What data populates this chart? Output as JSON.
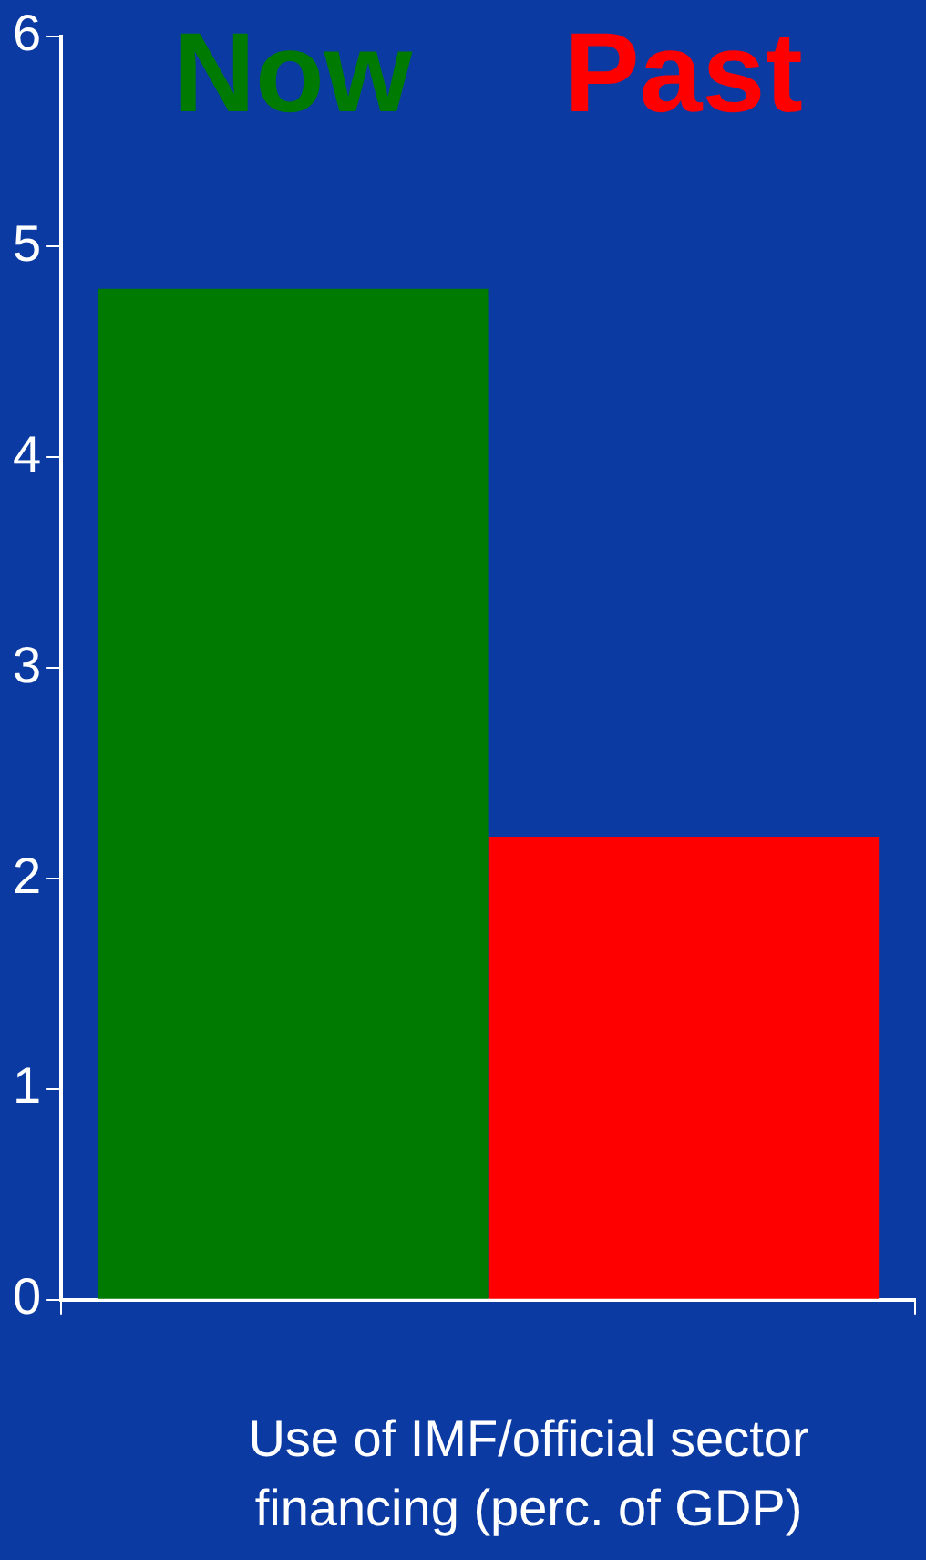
{
  "chart_data": {
    "type": "bar",
    "xlabel": "Use of IMF/official sector financing (perc. of GDP)",
    "categories": [
      null
    ],
    "series": [
      {
        "name": "Now",
        "color": "#007a00",
        "values": [
          4.8
        ]
      },
      {
        "name": "Past",
        "color": "#ff0000",
        "values": [
          2.2
        ]
      }
    ],
    "ylim": [
      0,
      6
    ],
    "yticks": [
      0,
      1,
      2,
      3,
      4,
      5,
      6
    ],
    "grid": false,
    "legend": "top"
  }
}
